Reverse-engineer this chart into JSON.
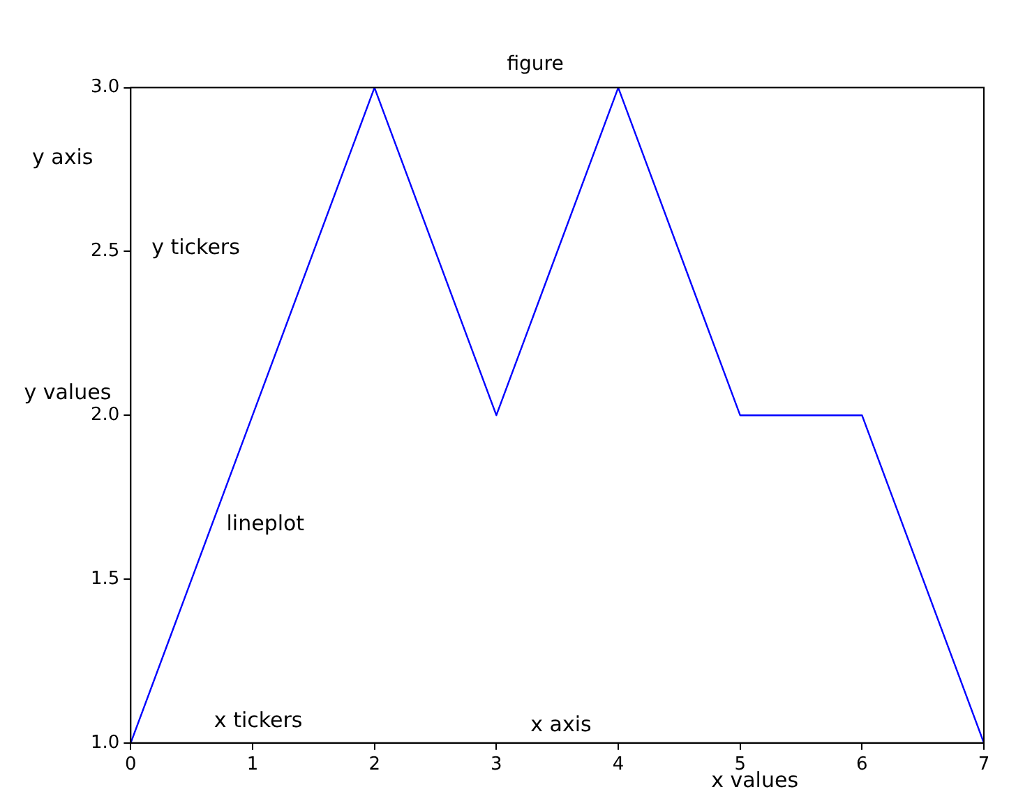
{
  "chart_data": {
    "type": "line",
    "title": "figure",
    "xlabel": "x values",
    "ylabel": "y values",
    "annotations": [
      "y axis",
      "y tickers",
      "lineplot",
      "x tickers",
      "x axis"
    ],
    "x": [
      0,
      1,
      2,
      3,
      4,
      5,
      6,
      7
    ],
    "series": [
      {
        "color": "#0000ff",
        "values": [
          1,
          2,
          3,
          2,
          3,
          2,
          2,
          1
        ]
      }
    ],
    "xlim": [
      0,
      7
    ],
    "xticks": [
      0,
      1,
      2,
      3,
      4,
      5,
      6,
      7
    ],
    "ylim": [
      1,
      3
    ],
    "yticks": [
      {
        "value": 1,
        "label": "1.0"
      },
      {
        "value": 1.5,
        "label": "1.5"
      },
      {
        "value": 2,
        "label": "2.0"
      },
      {
        "value": 2.5,
        "label": "2.5"
      },
      {
        "value": 3,
        "label": "3.0"
      }
    ],
    "grid": false,
    "legend": false,
    "marker": "none",
    "line_style": "solid"
  }
}
